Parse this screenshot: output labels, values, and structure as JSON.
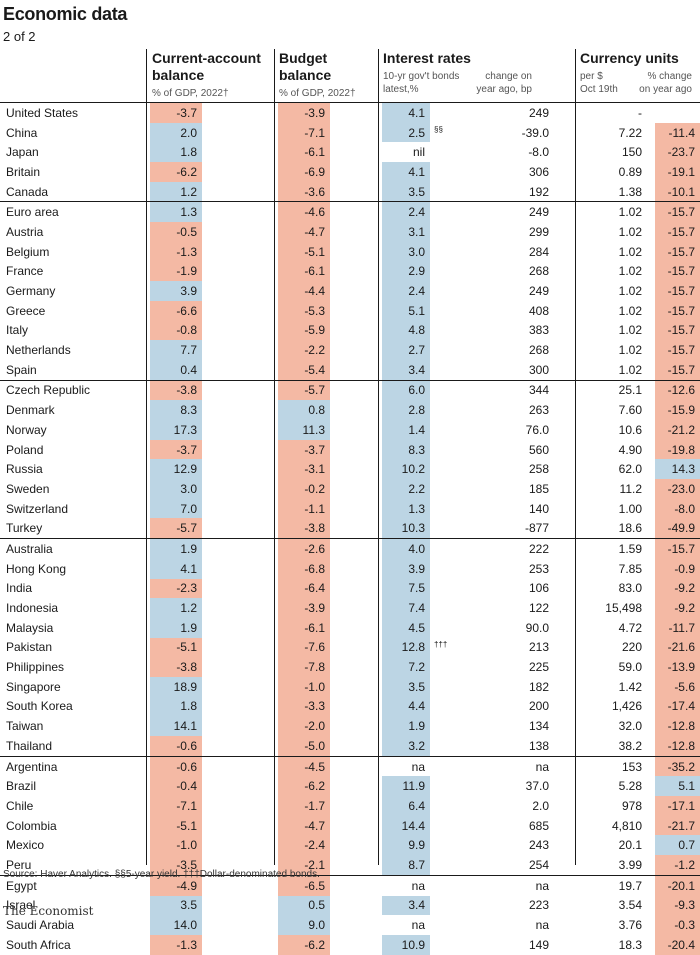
{
  "title": "Economic data",
  "subtitle": "2 of 2",
  "headers": {
    "current_account": {
      "title": "Current-account\nbalance",
      "sub": "% of GDP, 2022†"
    },
    "budget": {
      "title": "Budget\nbalance",
      "sub": "% of GDP, 2022†"
    },
    "interest": {
      "title": "Interest rates",
      "sub1": "10-yr gov't bonds\nlatest,%",
      "sub2": "change on\nyear ago, bp"
    },
    "currency": {
      "title": "Currency units",
      "sub1": "per $\nOct 19th",
      "sub2": "% change\non year ago"
    }
  },
  "colors": {
    "positive": "#bcd5e4",
    "negative": "#f4b9a4",
    "rule": "#1a1a1a"
  },
  "source": "Source: Haver Analytics. §§5-year yield. †††Dollar-denominated bonds.",
  "brand": "The Economist",
  "chart_data": {
    "type": "table",
    "columns": [
      "Current-account balance, % of GDP, 2022",
      "Budget balance, % of GDP, 2022",
      "10-yr gov't bonds latest,%",
      "Interest rates change on year ago, bp",
      "Currency units per $ Oct 19th",
      "Currency % change on year ago"
    ],
    "rows": [
      {
        "country": "United States",
        "ca": "-3.7",
        "budget": "-3.9",
        "rate": "4.1",
        "fn": "",
        "rate_chg": "249",
        "fx": "-",
        "fx_chg": ""
      },
      {
        "country": "China",
        "ca": "2.0",
        "budget": "-7.1",
        "rate": "2.5",
        "fn": "§§",
        "rate_chg": "-39.0",
        "fx": "7.22",
        "fx_chg": "-11.4"
      },
      {
        "country": "Japan",
        "ca": "1.8",
        "budget": "-6.1",
        "rate": "nil",
        "fn": "",
        "rate_chg": "-8.0",
        "fx": "150",
        "fx_chg": "-23.7"
      },
      {
        "country": "Britain",
        "ca": "-6.2",
        "budget": "-6.9",
        "rate": "4.1",
        "fn": "",
        "rate_chg": "306",
        "fx": "0.89",
        "fx_chg": "-19.1"
      },
      {
        "country": "Canada",
        "ca": "1.2",
        "budget": "-3.6",
        "rate": "3.5",
        "fn": "",
        "rate_chg": "192",
        "fx": "1.38",
        "fx_chg": "-10.1"
      },
      {
        "country": "Euro area",
        "ca": "1.3",
        "budget": "-4.6",
        "rate": "2.4",
        "fn": "",
        "rate_chg": "249",
        "fx": "1.02",
        "fx_chg": "-15.7",
        "sep": true
      },
      {
        "country": "Austria",
        "ca": "-0.5",
        "budget": "-4.7",
        "rate": "3.1",
        "fn": "",
        "rate_chg": "299",
        "fx": "1.02",
        "fx_chg": "-15.7"
      },
      {
        "country": "Belgium",
        "ca": "-1.3",
        "budget": "-5.1",
        "rate": "3.0",
        "fn": "",
        "rate_chg": "284",
        "fx": "1.02",
        "fx_chg": "-15.7"
      },
      {
        "country": "France",
        "ca": "-1.9",
        "budget": "-6.1",
        "rate": "2.9",
        "fn": "",
        "rate_chg": "268",
        "fx": "1.02",
        "fx_chg": "-15.7"
      },
      {
        "country": "Germany",
        "ca": "3.9",
        "budget": "-4.4",
        "rate": "2.4",
        "fn": "",
        "rate_chg": "249",
        "fx": "1.02",
        "fx_chg": "-15.7"
      },
      {
        "country": "Greece",
        "ca": "-6.6",
        "budget": "-5.3",
        "rate": "5.1",
        "fn": "",
        "rate_chg": "408",
        "fx": "1.02",
        "fx_chg": "-15.7"
      },
      {
        "country": "Italy",
        "ca": "-0.8",
        "budget": "-5.9",
        "rate": "4.8",
        "fn": "",
        "rate_chg": "383",
        "fx": "1.02",
        "fx_chg": "-15.7"
      },
      {
        "country": "Netherlands",
        "ca": "7.7",
        "budget": "-2.2",
        "rate": "2.7",
        "fn": "",
        "rate_chg": "268",
        "fx": "1.02",
        "fx_chg": "-15.7"
      },
      {
        "country": "Spain",
        "ca": "0.4",
        "budget": "-5.4",
        "rate": "3.4",
        "fn": "",
        "rate_chg": "300",
        "fx": "1.02",
        "fx_chg": "-15.7"
      },
      {
        "country": "Czech Republic",
        "ca": "-3.8",
        "budget": "-5.7",
        "rate": "6.0",
        "fn": "",
        "rate_chg": "344",
        "fx": "25.1",
        "fx_chg": "-12.6",
        "sep": true
      },
      {
        "country": "Denmark",
        "ca": "8.3",
        "budget": "0.8",
        "rate": "2.8",
        "fn": "",
        "rate_chg": "263",
        "fx": "7.60",
        "fx_chg": "-15.9"
      },
      {
        "country": "Norway",
        "ca": "17.3",
        "budget": "11.3",
        "rate": "1.4",
        "fn": "",
        "rate_chg": "76.0",
        "fx": "10.6",
        "fx_chg": "-21.2"
      },
      {
        "country": "Poland",
        "ca": "-3.7",
        "budget": "-3.7",
        "rate": "8.3",
        "fn": "",
        "rate_chg": "560",
        "fx": "4.90",
        "fx_chg": "-19.8"
      },
      {
        "country": "Russia",
        "ca": "12.9",
        "budget": "-3.1",
        "rate": "10.2",
        "fn": "",
        "rate_chg": "258",
        "fx": "62.0",
        "fx_chg": "14.3"
      },
      {
        "country": "Sweden",
        "ca": "3.0",
        "budget": "-0.2",
        "rate": "2.2",
        "fn": "",
        "rate_chg": "185",
        "fx": "11.2",
        "fx_chg": "-23.0"
      },
      {
        "country": "Switzerland",
        "ca": "7.0",
        "budget": "-1.1",
        "rate": "1.3",
        "fn": "",
        "rate_chg": "140",
        "fx": "1.00",
        "fx_chg": "-8.0"
      },
      {
        "country": "Turkey",
        "ca": "-5.7",
        "budget": "-3.8",
        "rate": "10.3",
        "fn": "",
        "rate_chg": "-877",
        "fx": "18.6",
        "fx_chg": "-49.9"
      },
      {
        "country": "Australia",
        "ca": "1.9",
        "budget": "-2.6",
        "rate": "4.0",
        "fn": "",
        "rate_chg": "222",
        "fx": "1.59",
        "fx_chg": "-15.7",
        "sep": true
      },
      {
        "country": "Hong Kong",
        "ca": "4.1",
        "budget": "-6.8",
        "rate": "3.9",
        "fn": "",
        "rate_chg": "253",
        "fx": "7.85",
        "fx_chg": "-0.9"
      },
      {
        "country": "India",
        "ca": "-2.3",
        "budget": "-6.4",
        "rate": "7.5",
        "fn": "",
        "rate_chg": "106",
        "fx": "83.0",
        "fx_chg": "-9.2"
      },
      {
        "country": "Indonesia",
        "ca": "1.2",
        "budget": "-3.9",
        "rate": "7.4",
        "fn": "",
        "rate_chg": "122",
        "fx": "15,498",
        "fx_chg": "-9.2"
      },
      {
        "country": "Malaysia",
        "ca": "1.9",
        "budget": "-6.1",
        "rate": "4.5",
        "fn": "",
        "rate_chg": "90.0",
        "fx": "4.72",
        "fx_chg": "-11.7"
      },
      {
        "country": "Pakistan",
        "ca": "-5.1",
        "budget": "-7.6",
        "rate": "12.8",
        "fn": "†††",
        "rate_chg": "213",
        "fx": "220",
        "fx_chg": "-21.6"
      },
      {
        "country": "Philippines",
        "ca": "-3.8",
        "budget": "-7.8",
        "rate": "7.2",
        "fn": "",
        "rate_chg": "225",
        "fx": "59.0",
        "fx_chg": "-13.9"
      },
      {
        "country": "Singapore",
        "ca": "18.9",
        "budget": "-1.0",
        "rate": "3.5",
        "fn": "",
        "rate_chg": "182",
        "fx": "1.42",
        "fx_chg": "-5.6"
      },
      {
        "country": "South Korea",
        "ca": "1.8",
        "budget": "-3.3",
        "rate": "4.4",
        "fn": "",
        "rate_chg": "200",
        "fx": "1,426",
        "fx_chg": "-17.4"
      },
      {
        "country": "Taiwan",
        "ca": "14.1",
        "budget": "-2.0",
        "rate": "1.9",
        "fn": "",
        "rate_chg": "134",
        "fx": "32.0",
        "fx_chg": "-12.8"
      },
      {
        "country": "Thailand",
        "ca": "-0.6",
        "budget": "-5.0",
        "rate": "3.2",
        "fn": "",
        "rate_chg": "138",
        "fx": "38.2",
        "fx_chg": "-12.8"
      },
      {
        "country": "Argentina",
        "ca": "-0.6",
        "budget": "-4.5",
        "rate": "na",
        "fn": "",
        "rate_chg": "na",
        "fx": "153",
        "fx_chg": "-35.2",
        "sep": true
      },
      {
        "country": "Brazil",
        "ca": "-0.4",
        "budget": "-6.2",
        "rate": "11.9",
        "fn": "",
        "rate_chg": "37.0",
        "fx": "5.28",
        "fx_chg": "5.1"
      },
      {
        "country": "Chile",
        "ca": "-7.1",
        "budget": "-1.7",
        "rate": "6.4",
        "fn": "",
        "rate_chg": "2.0",
        "fx": "978",
        "fx_chg": "-17.1"
      },
      {
        "country": "Colombia",
        "ca": "-5.1",
        "budget": "-4.7",
        "rate": "14.4",
        "fn": "",
        "rate_chg": "685",
        "fx": "4,810",
        "fx_chg": "-21.7"
      },
      {
        "country": "Mexico",
        "ca": "-1.0",
        "budget": "-2.4",
        "rate": "9.9",
        "fn": "",
        "rate_chg": "243",
        "fx": "20.1",
        "fx_chg": "0.7"
      },
      {
        "country": "Peru",
        "ca": "-3.5",
        "budget": "-2.1",
        "rate": "8.7",
        "fn": "",
        "rate_chg": "254",
        "fx": "3.99",
        "fx_chg": "-1.2"
      },
      {
        "country": "Egypt",
        "ca": "-4.9",
        "budget": "-6.5",
        "rate": "na",
        "fn": "",
        "rate_chg": "na",
        "fx": "19.7",
        "fx_chg": "-20.1",
        "sep": true
      },
      {
        "country": "Israel",
        "ca": "3.5",
        "budget": "0.5",
        "rate": "3.4",
        "fn": "",
        "rate_chg": "223",
        "fx": "3.54",
        "fx_chg": "-9.3"
      },
      {
        "country": "Saudi Arabia",
        "ca": "14.0",
        "budget": "9.0",
        "rate": "na",
        "fn": "",
        "rate_chg": "na",
        "fx": "3.76",
        "fx_chg": "-0.3"
      },
      {
        "country": "South Africa",
        "ca": "-1.3",
        "budget": "-6.2",
        "rate": "10.9",
        "fn": "",
        "rate_chg": "149",
        "fx": "18.3",
        "fx_chg": "-20.4"
      }
    ]
  }
}
